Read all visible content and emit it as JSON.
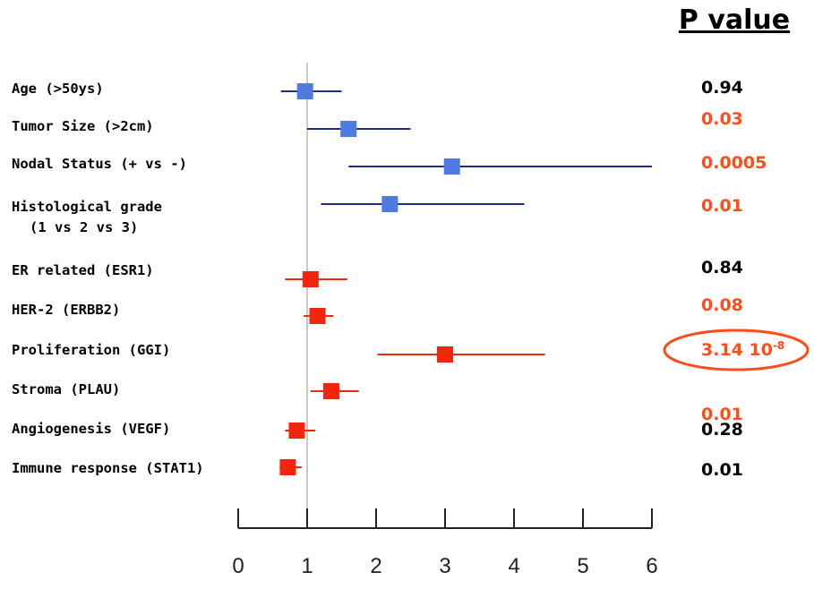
{
  "chart_data": {
    "type": "forest",
    "pvalue_header": "P value",
    "xlim": [
      0,
      6
    ],
    "x_ticks": [
      "0",
      "1",
      "2",
      "3",
      "4",
      "5",
      "6"
    ],
    "reference_line": 1,
    "colors": {
      "clinical": "#4f7be0",
      "clinical_ci": "#1b2f8a",
      "genomic": "#f0260f",
      "significant": "#ff4d1a",
      "normal": "#000000",
      "highlight_ellipse": "#ff4d1a"
    },
    "rows": [
      {
        "label": "Age (>50ys)",
        "label2": "",
        "estimate": 0.97,
        "ci_low": 0.62,
        "ci_high": 1.5,
        "group": "clinical",
        "p": "0.94",
        "p_sup": "",
        "significant": false,
        "highlighted": false
      },
      {
        "label": "Tumor Size (>2cm)",
        "label2": "",
        "estimate": 1.6,
        "ci_low": 1.0,
        "ci_high": 2.5,
        "group": "clinical",
        "p": "0.03",
        "p_sup": "",
        "significant": true,
        "highlighted": false
      },
      {
        "label": "Nodal Status (+ vs -)",
        "label2": "",
        "estimate": 3.1,
        "ci_low": 1.6,
        "ci_high": 6.0,
        "group": "clinical",
        "p": "0.0005",
        "p_sup": "",
        "significant": true,
        "highlighted": false
      },
      {
        "label": "Histological grade",
        "label2": "(1 vs 2 vs 3)",
        "estimate": 2.2,
        "ci_low": 1.2,
        "ci_high": 4.15,
        "group": "clinical",
        "p": "0.01",
        "p_sup": "",
        "significant": true,
        "highlighted": false
      },
      {
        "label": "ER related (ESR1)",
        "label2": "",
        "estimate": 1.05,
        "ci_low": 0.68,
        "ci_high": 1.58,
        "group": "genomic",
        "p": "0.84",
        "p_sup": "",
        "significant": false,
        "highlighted": false
      },
      {
        "label": "HER-2 (ERBB2)",
        "label2": "",
        "estimate": 1.15,
        "ci_low": 0.95,
        "ci_high": 1.38,
        "group": "genomic",
        "p": "0.08",
        "p_sup": "",
        "significant": true,
        "highlighted": false
      },
      {
        "label": "Proliferation (GGI)",
        "label2": "",
        "estimate": 3.0,
        "ci_low": 2.02,
        "ci_high": 4.45,
        "group": "genomic",
        "p": "3.14 10",
        "p_sup": "-8",
        "significant": true,
        "highlighted": true
      },
      {
        "label": "Stroma (PLAU)",
        "label2": "",
        "estimate": 1.35,
        "ci_low": 1.05,
        "ci_high": 1.75,
        "group": "genomic",
        "p": "0.01",
        "p_sup": "",
        "significant": true,
        "highlighted": false
      },
      {
        "label": "Angiogenesis (VEGF)",
        "label2": "",
        "estimate": 0.85,
        "ci_low": 0.68,
        "ci_high": 1.12,
        "group": "genomic",
        "p": "0.28",
        "p_sup": "",
        "significant": false,
        "highlighted": false
      },
      {
        "label": "Immune response (STAT1)",
        "label2": "",
        "estimate": 0.72,
        "ci_low": 0.6,
        "ci_high": 0.92,
        "group": "genomic",
        "p": "0.01",
        "p_sup": "",
        "significant": false,
        "highlighted": false
      }
    ]
  }
}
